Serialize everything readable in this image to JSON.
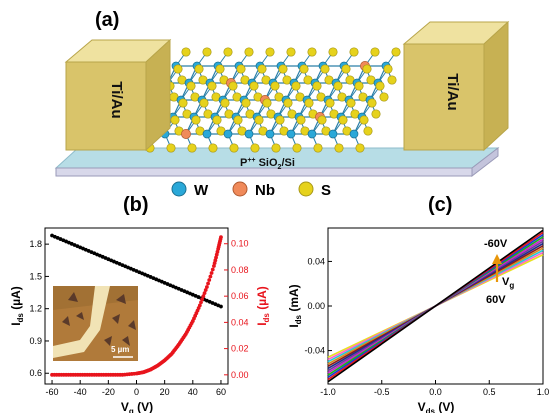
{
  "panel_a": {
    "label": "(a)",
    "electrode_left": "Ti/Au",
    "electrode_right": "Ti/Au",
    "substrate_prefix": "P",
    "substrate_sup": "++",
    "substrate_mid": " SiO",
    "substrate_sub": "2",
    "substrate_suffix": "/Si",
    "atom_colors": {
      "W": "#2aa8d8",
      "Nb": "#f08a5a",
      "S": "#e6d21c",
      "bond": "#2a7fa8",
      "electrode": "#d9c46a",
      "substrate": "#b7dde6"
    }
  },
  "legend": {
    "items": [
      {
        "symbol": "W",
        "color": "#2aa8d8"
      },
      {
        "symbol": "Nb",
        "color": "#f08a5a"
      },
      {
        "symbol": "S",
        "color": "#e6d21c"
      }
    ]
  },
  "panel_b": {
    "label": "(b)",
    "inset_scalebar": "5 µm"
  },
  "panel_c": {
    "label": "(c)",
    "annotation_top": "-60V",
    "annotation_bottom": "60V"
  },
  "chart_data": [
    {
      "type": "line",
      "panel": "b",
      "xlabel": "V",
      "xlabel_sub": "g",
      "xlabel_unit": " (V)",
      "ylabel_left": "I",
      "ylabel_left_sub": "ds",
      "ylabel_left_unit": " (µA)",
      "ylabel_right": "I",
      "ylabel_right_sub": "ds",
      "ylabel_right_unit": " (µA)",
      "xlim": [
        -65,
        65
      ],
      "xticks": [
        -60,
        -40,
        -20,
        0,
        20,
        40,
        60
      ],
      "ylim_left": [
        0.5,
        1.95
      ],
      "yticks_left": [
        0.6,
        0.9,
        1.2,
        1.5,
        1.8
      ],
      "ylim_right": [
        -0.007,
        0.112
      ],
      "yticks_right": [
        0.0,
        0.02,
        0.04,
        0.06,
        0.08,
        0.1
      ],
      "ytick_labels_right": [
        "0.00",
        "0.02",
        "0.04",
        "0.06",
        "0.08",
        "0.10"
      ],
      "series": [
        {
          "axis": "left",
          "color": "#000000",
          "x": [
            -60,
            60
          ],
          "y": [
            1.88,
            1.22
          ]
        },
        {
          "axis": "right",
          "color": "#e8141c",
          "marker": "dot",
          "x": [
            -60,
            -50,
            -40,
            -30,
            -20,
            -10,
            0,
            5,
            10,
            15,
            20,
            25,
            30,
            35,
            40,
            45,
            50,
            55,
            58,
            60
          ],
          "y": [
            0.0,
            0.0,
            0.0,
            0.0,
            0.0,
            0.0,
            0.001,
            0.002,
            0.004,
            0.007,
            0.011,
            0.016,
            0.023,
            0.031,
            0.041,
            0.053,
            0.067,
            0.083,
            0.096,
            0.105
          ]
        }
      ]
    },
    {
      "type": "line",
      "panel": "c",
      "xlabel": "V",
      "xlabel_sub": "ds",
      "xlabel_unit": " (V)",
      "ylabel": "I",
      "ylabel_sub": "ds",
      "ylabel_unit": " (mA)",
      "xlim": [
        -1.0,
        1.0
      ],
      "xticks": [
        -1.0,
        -0.5,
        0.0,
        0.5,
        1.0
      ],
      "ylim": [
        -0.07,
        0.07
      ],
      "yticks": [
        -0.04,
        0.0,
        0.04
      ],
      "ytick_labels": [
        "-0.04",
        "0.00",
        "0.04"
      ],
      "gate_voltage_label": "V",
      "gate_voltage_sub": "g",
      "series": [
        {
          "color": "#000000",
          "slope": 0.068
        },
        {
          "color": "#e8141c",
          "slope": 0.066
        },
        {
          "color": "#1a3ad6",
          "slope": 0.064
        },
        {
          "color": "#18b318",
          "slope": 0.062
        },
        {
          "color": "#cc22cc",
          "slope": 0.06
        },
        {
          "color": "#6a3d9a",
          "slope": 0.058
        },
        {
          "color": "#1e2c8a",
          "slope": 0.056
        },
        {
          "color": "#8b1a1a",
          "slope": 0.054
        },
        {
          "color": "#d98a1a",
          "slope": 0.052
        },
        {
          "color": "#22c8d8",
          "slope": 0.05
        },
        {
          "color": "#ff66cc",
          "slope": 0.048
        },
        {
          "color": "#e8e020",
          "slope": 0.046
        }
      ]
    }
  ]
}
